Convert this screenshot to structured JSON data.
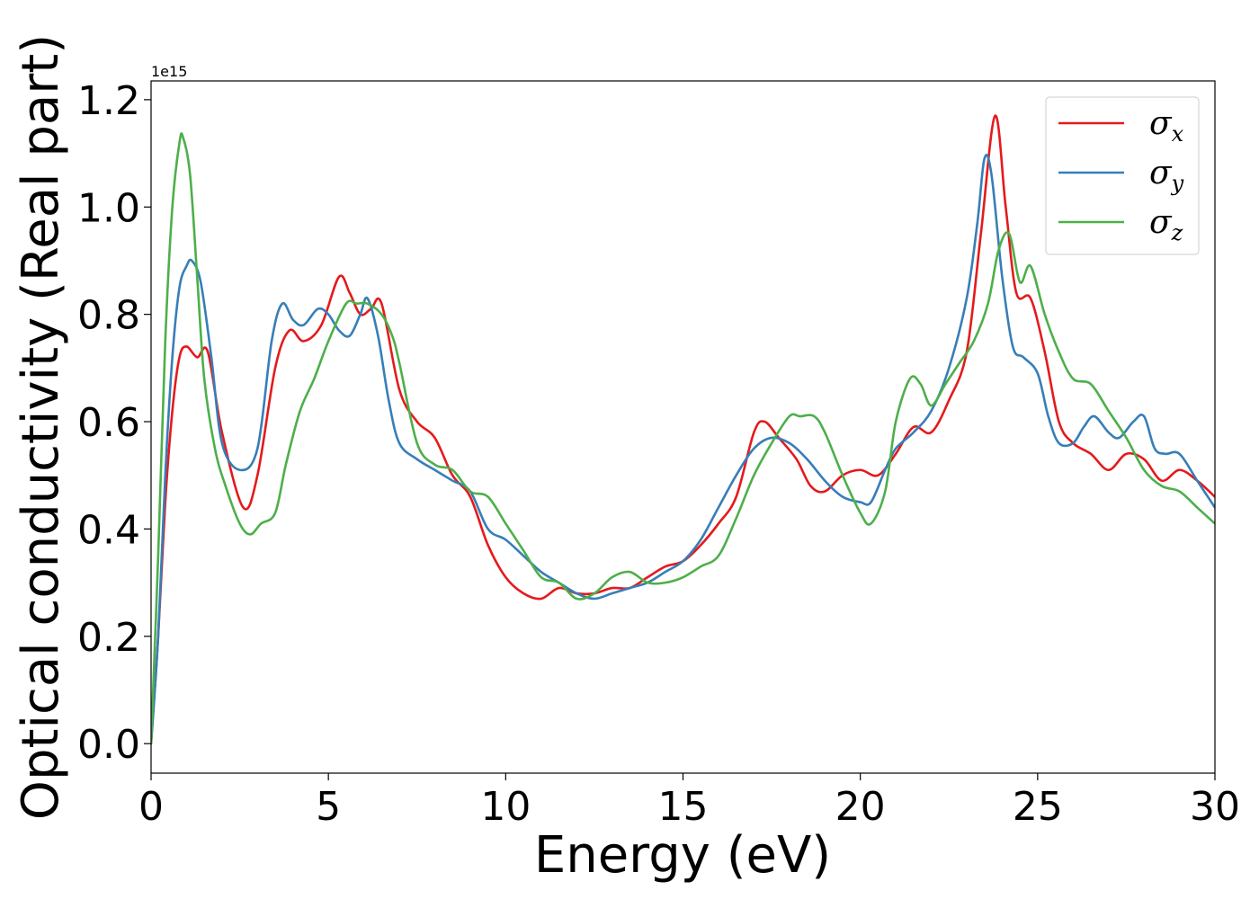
{
  "chart_data": {
    "type": "line",
    "xlabel": "Energy (eV)",
    "ylabel": "Optical conductivity (Real part)",
    "y_offset_text": "1e15",
    "xlim": [
      0,
      30
    ],
    "ylim": [
      -0.055,
      1.235
    ],
    "x_ticks": [
      0,
      5,
      10,
      15,
      20,
      25,
      30
    ],
    "x_tick_labels": [
      "0",
      "5",
      "10",
      "15",
      "20",
      "25",
      "30"
    ],
    "y_ticks": [
      0.0,
      0.2,
      0.4,
      0.6,
      0.8,
      1.0,
      1.2
    ],
    "y_tick_labels": [
      "0.0",
      "0.2",
      "0.4",
      "0.6",
      "0.8",
      "1.0",
      "1.2"
    ],
    "grid": false,
    "legend_position": "top-right",
    "series": [
      {
        "name": "σx",
        "symbol": "σ",
        "subscript": "x",
        "color": "#e41a1c",
        "x": [
          0,
          0.2,
          0.4,
          0.6,
          0.8,
          1.0,
          1.3,
          1.6,
          2.0,
          2.6,
          3.0,
          3.5,
          3.9,
          4.3,
          4.8,
          5.3,
          5.6,
          5.9,
          6.2,
          6.5,
          7.0,
          7.5,
          8.0,
          8.5,
          9.0,
          9.5,
          10.0,
          10.5,
          11.0,
          11.5,
          12.0,
          12.5,
          13.0,
          13.5,
          14.0,
          14.5,
          15.0,
          15.5,
          16.0,
          16.5,
          17.0,
          17.3,
          17.7,
          18.2,
          18.6,
          19.0,
          19.5,
          20.0,
          20.5,
          21.0,
          21.5,
          22.0,
          22.5,
          23.0,
          23.4,
          23.8,
          24.1,
          24.4,
          24.8,
          25.2,
          25.6,
          26.0,
          26.5,
          27.0,
          27.5,
          28.0,
          28.5,
          29.0,
          29.5,
          30.0
        ],
        "y": [
          0.0,
          0.2,
          0.45,
          0.62,
          0.72,
          0.74,
          0.72,
          0.73,
          0.58,
          0.44,
          0.5,
          0.7,
          0.77,
          0.75,
          0.78,
          0.87,
          0.84,
          0.8,
          0.81,
          0.82,
          0.66,
          0.6,
          0.57,
          0.5,
          0.46,
          0.37,
          0.31,
          0.28,
          0.27,
          0.29,
          0.28,
          0.28,
          0.29,
          0.29,
          0.31,
          0.33,
          0.34,
          0.37,
          0.41,
          0.46,
          0.58,
          0.6,
          0.57,
          0.53,
          0.48,
          0.47,
          0.5,
          0.51,
          0.5,
          0.54,
          0.59,
          0.58,
          0.64,
          0.73,
          0.95,
          1.17,
          1.0,
          0.84,
          0.83,
          0.73,
          0.6,
          0.56,
          0.54,
          0.51,
          0.54,
          0.53,
          0.49,
          0.51,
          0.49,
          0.46
        ]
      },
      {
        "name": "σy",
        "symbol": "σ",
        "subscript": "y",
        "color": "#377eb8",
        "x": [
          0,
          0.2,
          0.4,
          0.6,
          0.8,
          1.0,
          1.15,
          1.4,
          1.7,
          2.0,
          2.5,
          3.0,
          3.4,
          3.7,
          4.0,
          4.3,
          4.7,
          5.0,
          5.3,
          5.6,
          5.9,
          6.1,
          6.4,
          6.7,
          7.0,
          7.5,
          8.0,
          8.5,
          9.0,
          9.5,
          10.0,
          10.5,
          11.0,
          11.5,
          12.0,
          12.5,
          13.0,
          13.5,
          14.0,
          14.5,
          15.0,
          15.5,
          16.0,
          16.5,
          17.0,
          17.5,
          18.0,
          18.5,
          19.0,
          19.5,
          20.0,
          20.3,
          20.7,
          21.0,
          21.5,
          22.0,
          22.5,
          23.0,
          23.3,
          23.5,
          23.7,
          24.0,
          24.3,
          24.6,
          25.0,
          25.3,
          25.6,
          26.0,
          26.3,
          26.6,
          27.0,
          27.3,
          27.7,
          28.0,
          28.3,
          28.6,
          29.0,
          29.5,
          30.0
        ],
        "y": [
          0.0,
          0.2,
          0.5,
          0.72,
          0.85,
          0.89,
          0.9,
          0.86,
          0.72,
          0.56,
          0.51,
          0.55,
          0.75,
          0.82,
          0.79,
          0.78,
          0.81,
          0.8,
          0.77,
          0.76,
          0.8,
          0.83,
          0.76,
          0.64,
          0.56,
          0.53,
          0.51,
          0.49,
          0.47,
          0.4,
          0.38,
          0.35,
          0.32,
          0.3,
          0.28,
          0.27,
          0.28,
          0.29,
          0.3,
          0.32,
          0.34,
          0.38,
          0.44,
          0.5,
          0.55,
          0.57,
          0.56,
          0.53,
          0.49,
          0.46,
          0.45,
          0.45,
          0.51,
          0.55,
          0.58,
          0.62,
          0.7,
          0.83,
          0.97,
          1.09,
          1.06,
          0.87,
          0.74,
          0.72,
          0.69,
          0.61,
          0.56,
          0.56,
          0.59,
          0.61,
          0.58,
          0.57,
          0.6,
          0.61,
          0.55,
          0.54,
          0.54,
          0.49,
          0.44
        ]
      },
      {
        "name": "σz",
        "symbol": "σ",
        "subscript": "z",
        "color": "#4daf4a",
        "x": [
          0,
          0.2,
          0.4,
          0.6,
          0.8,
          0.9,
          1.1,
          1.3,
          1.5,
          1.8,
          2.1,
          2.5,
          2.8,
          3.1,
          3.5,
          3.8,
          4.2,
          4.6,
          5.0,
          5.5,
          5.8,
          6.1,
          6.5,
          6.8,
          7.0,
          7.5,
          8.0,
          8.5,
          9.0,
          9.5,
          10.0,
          10.5,
          11.0,
          11.5,
          12.0,
          12.5,
          13.0,
          13.5,
          14.0,
          14.5,
          15.0,
          15.5,
          16.0,
          16.5,
          17.0,
          17.5,
          18.0,
          18.3,
          18.7,
          19.0,
          19.5,
          20.0,
          20.3,
          20.7,
          21.0,
          21.4,
          21.7,
          22.0,
          22.4,
          22.8,
          23.2,
          23.6,
          23.9,
          24.2,
          24.5,
          24.8,
          25.2,
          25.6,
          26.0,
          26.5,
          27.0,
          27.5,
          28.0,
          28.5,
          29.0,
          29.5,
          30.0
        ],
        "y": [
          0.0,
          0.35,
          0.75,
          1.0,
          1.12,
          1.13,
          1.06,
          0.87,
          0.68,
          0.55,
          0.48,
          0.41,
          0.39,
          0.41,
          0.43,
          0.52,
          0.62,
          0.68,
          0.75,
          0.82,
          0.82,
          0.82,
          0.8,
          0.76,
          0.71,
          0.56,
          0.52,
          0.51,
          0.47,
          0.46,
          0.41,
          0.36,
          0.31,
          0.3,
          0.27,
          0.28,
          0.31,
          0.32,
          0.3,
          0.3,
          0.31,
          0.33,
          0.35,
          0.42,
          0.5,
          0.56,
          0.61,
          0.61,
          0.61,
          0.58,
          0.5,
          0.43,
          0.41,
          0.47,
          0.6,
          0.68,
          0.67,
          0.63,
          0.67,
          0.71,
          0.75,
          0.82,
          0.92,
          0.95,
          0.86,
          0.89,
          0.8,
          0.73,
          0.68,
          0.67,
          0.62,
          0.57,
          0.51,
          0.48,
          0.47,
          0.44,
          0.41
        ]
      }
    ]
  }
}
